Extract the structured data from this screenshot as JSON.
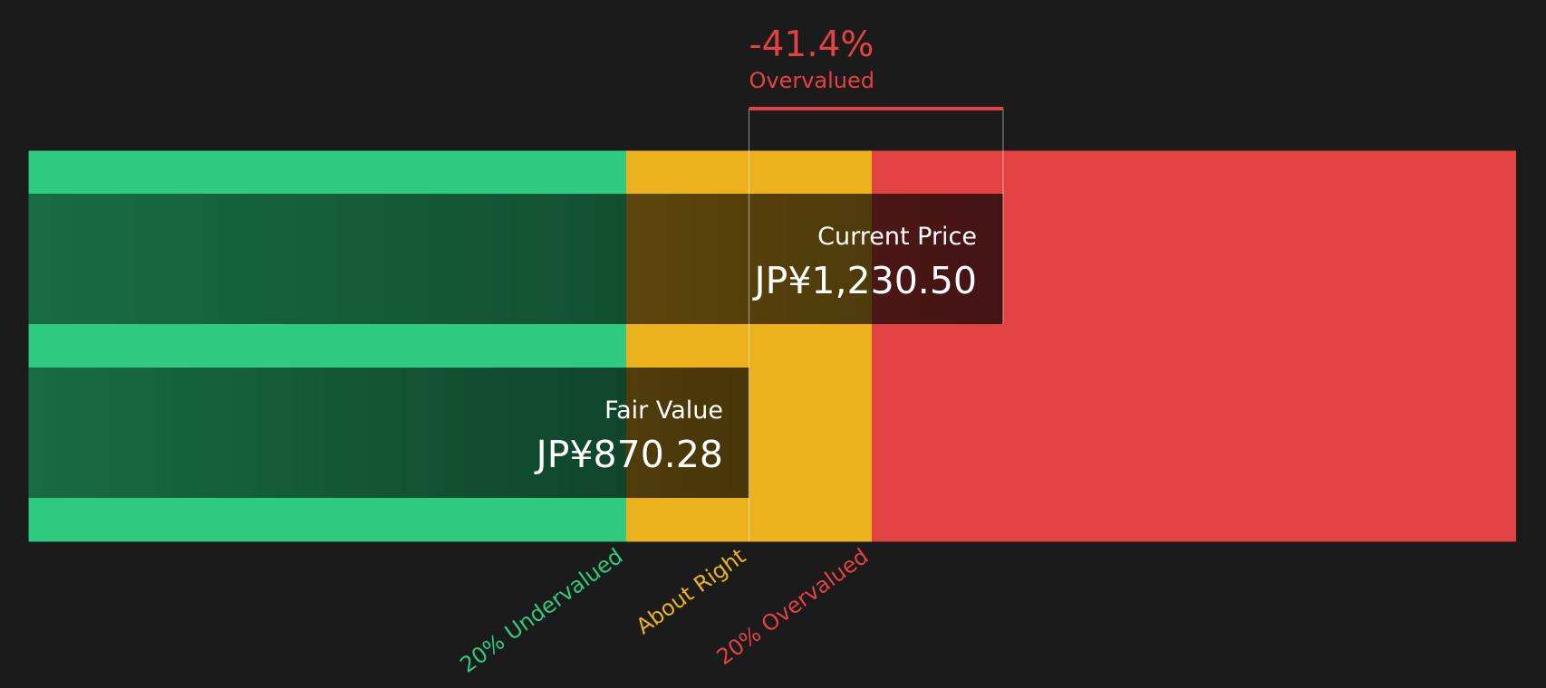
{
  "chart_data": {
    "type": "valuation",
    "difference_label": "-41.4%",
    "status": "Overvalued",
    "current_price": {
      "name": "Current Price",
      "value": 1230.5,
      "label": "JP¥1,230.50"
    },
    "fair_value": {
      "name": "Fair Value",
      "value": 870.28,
      "label": "JP¥870.28"
    },
    "zones": [
      {
        "name": "20% Undervalued",
        "color": "#2ecb80"
      },
      {
        "name": "About Right",
        "color": "#ecb21e"
      },
      {
        "name": "20% Overvalued",
        "color": "#e34242"
      }
    ]
  }
}
